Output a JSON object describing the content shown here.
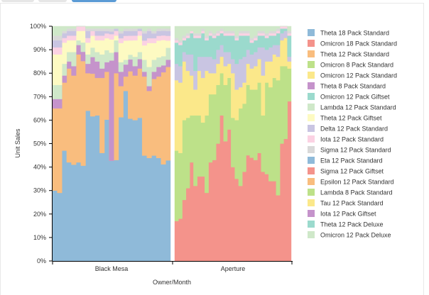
{
  "chart_data": {
    "type": "area",
    "subtype": "stacked-100-percent",
    "title": "",
    "xlabel": "Owner/Month",
    "ylabel": "Unit Sales",
    "ylim": [
      0,
      100
    ],
    "y_ticks": [
      "0%",
      "10%",
      "20%",
      "30%",
      "40%",
      "50%",
      "60%",
      "70%",
      "80%",
      "90%",
      "100%"
    ],
    "grid": false,
    "legend_position": "right",
    "groups": [
      "Black Mesa",
      "Aperture"
    ],
    "series": [
      {
        "name": "Theta 18 Pack Standard",
        "color": "#8fbad9"
      },
      {
        "name": "Omicron 18 Pack Standard",
        "color": "#f4938b"
      },
      {
        "name": "Theta 12 Pack Standard",
        "color": "#f9bd7e"
      },
      {
        "name": "Omicron 8 Pack Standard",
        "color": "#bde189"
      },
      {
        "name": "Omicron 12 Pack Standard",
        "color": "#fbe88a"
      },
      {
        "name": "Theta 8 Pack Standard",
        "color": "#c593cb"
      },
      {
        "name": "Omicron 12 Pack Giftset",
        "color": "#9bdacd"
      },
      {
        "name": "Lambda 12 Pack Standard",
        "color": "#cfe8c9"
      },
      {
        "name": "Theta 12 Pack Giftset",
        "color": "#fdfac2"
      },
      {
        "name": "Delta 12 Pack Standard",
        "color": "#c9c5e2"
      },
      {
        "name": "Iota 12 Pack Standard",
        "color": "#fbd2e3"
      },
      {
        "name": "Sigma 12 Pack Standard",
        "color": "#d9d9d9"
      },
      {
        "name": "Eta 12 Pack Standard",
        "color": "#8fbad9"
      },
      {
        "name": "Sigma 12 Pack Giftset",
        "color": "#f4938b"
      },
      {
        "name": "Epsilon 12 Pack Standard",
        "color": "#f9bd7e"
      },
      {
        "name": "Lambda 8 Pack Standard",
        "color": "#bde189"
      },
      {
        "name": "Tau 12 Pack Standard",
        "color": "#fbe88a"
      },
      {
        "name": "Iota 12 Pack Giftset",
        "color": "#c593cb"
      },
      {
        "name": "Theta 12 Pack Deluxe",
        "color": "#9bdacd"
      },
      {
        "name": "Omicron 12 Pack Deluxe",
        "color": "#cfe8c9"
      }
    ],
    "panels": [
      {
        "group": "Black Mesa",
        "layers": [
          {
            "series": "Theta 18 Pack Standard",
            "values": [
              30,
              29,
              47,
              42,
              41,
              42,
              41,
              64,
              61,
              62,
              46,
              59,
              38,
              43,
              60,
              71,
              60,
              60,
              61,
              44,
              43,
              44,
              43,
              42,
              42
            ]
          },
          {
            "series": "Theta 12 Pack Standard",
            "values": [
              35,
              36,
              29,
              40,
              38,
              46,
              45,
              16,
              18,
              16,
              32,
              20,
              -11,
              37,
              13,
              6,
              20,
              19,
              21,
              33,
              28,
              32,
              34,
              40,
              39
            ]
          },
          {
            "series": "Theta 8 Pack Standard",
            "values": [
              4,
              4,
              3,
              3,
              4,
              4,
              4,
              4,
              7,
              7,
              4,
              4,
              38,
              9,
              6,
              5,
              5,
              4,
              4,
              2,
              2,
              3,
              4,
              3,
              3
            ]
          },
          {
            "series": "Lambda 12 Pack Standard",
            "values": [
              6,
              6,
              5,
              4,
              6,
              2,
              4,
              4,
              4,
              4,
              6,
              5,
              3,
              5,
              4,
              2,
              2,
              4,
              3,
              5,
              8,
              5,
              4,
              4,
              5
            ]
          },
          {
            "series": "Theta 12 Pack Giftset",
            "values": [
              13,
              13,
              9,
              5,
              5,
              4,
              5,
              5,
              5,
              5,
              6,
              5,
              5,
              2,
              8,
              8,
              6,
              7,
              7,
              6,
              10,
              7,
              7,
              7,
              3
            ]
          },
          {
            "series": "Iota 12 Pack Standard",
            "values": [
              3,
              3,
              2,
              2,
              2,
              2,
              2,
              2,
              2,
              2,
              2,
              2,
              2,
              2,
              2,
              2,
              2,
              2,
              2,
              2,
              2,
              2,
              2,
              2,
              2
            ]
          },
          {
            "series": "Delta 12 Pack Standard",
            "values": [
              3,
              3,
              2,
              2,
              2,
              0,
              0,
              3,
              0,
              2,
              2,
              1,
              1,
              1,
              2,
              2,
              2,
              2,
              1,
              3,
              3,
              2,
              2,
              2,
              2
            ]
          },
          {
            "series": "Sigma 12 Pack Standard",
            "values": [
              2,
              2,
              1,
              1,
              1,
              0,
              0,
              1,
              1,
              1,
              1,
              1,
              1,
              0,
              1,
              1,
              1,
              1,
              0,
              1,
              1,
              1,
              1,
              1,
              1
            ]
          },
          {
            "series": "Omicron 12 Pack Deluxe",
            "values": [
              4,
              4,
              2,
              1,
              1,
              0,
              0,
              1,
              1,
              1,
              1,
              1,
              1,
              1,
              2,
              1,
              1,
              1,
              1,
              2,
              1,
              2,
              1,
              1,
              1
            ]
          }
        ]
      },
      {
        "group": "Aperture",
        "layers": [
          {
            "series": "Omicron 18 Pack Standard",
            "values": [
              17,
              18,
              26,
              31,
              42,
              32,
              36,
              36,
              29,
              42,
              43,
              50,
              62,
              51,
              56,
              40,
              35,
              32,
              38,
              45,
              44,
              43,
              46,
              38,
              37,
              34,
              34,
              28,
              50,
              52,
              68
            ]
          },
          {
            "series": "Omicron 8 Pack Standard",
            "values": [
              30,
              28,
              34,
              30,
              20,
              30,
              26,
              23,
              33,
              29,
              28,
              25,
              18,
              24,
              22,
              21,
              25,
              33,
              29,
              30,
              29,
              30,
              30,
              24,
              39,
              40,
              44,
              49,
              33,
              31,
              14
            ]
          },
          {
            "series": "Omicron 12 Pack Standard",
            "values": [
              30,
              30,
              25,
              20,
              17,
              11,
              19,
              19,
              19,
              9,
              9,
              9,
              7,
              8,
              6,
              19,
              13,
              9,
              9,
              9,
              9,
              10,
              10,
              17,
              9,
              11,
              10,
              10,
              11,
              12,
              3
            ]
          },
          {
            "series": "Delta 12 Pack Standard",
            "values": [
              7,
              7,
              4,
              7,
              9,
              8,
              6,
              9,
              6,
              7,
              6,
              6,
              5,
              6,
              5,
              6,
              11,
              12,
              11,
              6,
              6,
              6,
              5,
              12,
              5,
              6,
              4,
              5,
              3,
              3,
              2
            ]
          },
          {
            "series": "Omicron 12 Pack Giftset",
            "values": [
              9,
              9,
              5,
              7,
              9,
              14,
              8,
              10,
              7,
              9,
              9,
              6,
              5,
              7,
              7,
              10,
              10,
              10,
              9,
              6,
              5,
              5,
              5,
              5,
              5,
              5,
              4,
              5,
              2,
              1,
              9
            ]
          },
          {
            "series": "Iota 12 Pack Standard",
            "values": [
              1,
              1,
              1,
              1,
              1,
              1,
              1,
              1,
              1,
              1,
              1,
              1,
              1,
              1,
              1,
              1,
              1,
              1,
              1,
              1,
              1,
              1,
              1,
              1,
              1,
              1,
              1,
              1,
              1,
              1,
              1
            ]
          },
          {
            "series": "Sigma 12 Pack Standard",
            "values": [
              1,
              1,
              1,
              1,
              0,
              1,
              1,
              1,
              1,
              1,
              1,
              1,
              1,
              1,
              1,
              1,
              1,
              1,
              1,
              1,
              1,
              1,
              1,
              1,
              1,
              1,
              1,
              1,
              0,
              0,
              1
            ]
          },
          {
            "series": "Omicron 12 Pack Deluxe",
            "values": [
              5,
              6,
              4,
              3,
              2,
              3,
              3,
              1,
              4,
              2,
              3,
              2,
              1,
              2,
              2,
              2,
              4,
              2,
              2,
              2,
              5,
              4,
              2,
              2,
              3,
              2,
              2,
              1,
              0,
              0,
              2
            ]
          }
        ]
      }
    ]
  },
  "colors": {
    "tab_active": "#5b9bd5",
    "tab_inactive": "#e6e6e6",
    "panel_border": "#e8e8e8",
    "axis": "#000000"
  }
}
